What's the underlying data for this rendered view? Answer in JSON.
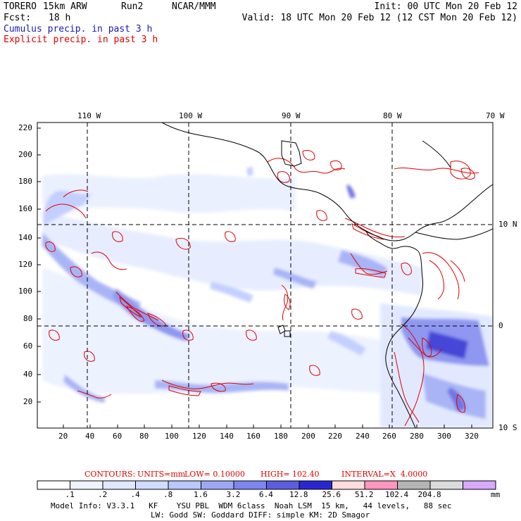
{
  "header": {
    "model": "TORERO",
    "resolution": "15km ARW",
    "run": "Run2",
    "org": "NCAR/MMM",
    "init": "Init: 00 UTC Mon 20 Feb 12",
    "fcst_label": "Fcst:",
    "fcst_value": "18 h",
    "valid": "Valid: 18 UTC Mon 20 Feb 12 (12 CST Mon 20 Feb 12)",
    "line_cumulus": "Cumulus precip. in past 3 h",
    "line_explicit": "Explicit precip. in past 3 h"
  },
  "colors": {
    "cumulus_text": "#1a1ab4",
    "explicit_text": "#e00000",
    "contour_red": "#e00000",
    "grid": "#000000"
  },
  "map": {
    "lon_labels": [
      "110 W",
      "100 W",
      "90 W",
      "80 W",
      "70 W"
    ],
    "lat_labels": [
      "10 N",
      "0",
      "10 S"
    ],
    "y_ticks": [
      "220",
      "200",
      "180",
      "160",
      "140",
      "120",
      "100",
      "80",
      "60",
      "40",
      "20"
    ],
    "x_ticks": [
      "20",
      "40",
      "60",
      "80",
      "100",
      "120",
      "140",
      "160",
      "180",
      "200",
      "220",
      "240",
      "260",
      "280",
      "300",
      "320"
    ]
  },
  "contours_line": {
    "label": "CONTOURS:",
    "units": "UNITS=mm",
    "low": "LOW= 0.10000",
    "high": "HIGH= 102.40",
    "interval": "INTERVAL=X  4.0000"
  },
  "colorbar": {
    "colors": [
      "#ffffff",
      "#eef3ff",
      "#e0e9ff",
      "#d0dcff",
      "#b9c8ff",
      "#9aa8f5",
      "#7b86ee",
      "#5a5ee0",
      "#2828d2",
      "#ffdcdc",
      "#ff96c0",
      "#b4b4b4",
      "#dcdcdc",
      "#d8aaff"
    ],
    "labels": [
      ".1",
      ".2",
      ".4",
      ".8",
      "1.6",
      "3.2",
      "6.4",
      "12.8",
      "25.6",
      "51.2",
      "102.4",
      "204.8"
    ],
    "unit": "mm"
  },
  "footer": {
    "line1": "Model Info: V3.3.1   KF    YSU PBL  WDM 6class  Noah LSM  15 km,   44 levels,   88 sec",
    "line2": "LW: Godd SW: Goddard DIFF: simple KM: 2D Smagor"
  }
}
